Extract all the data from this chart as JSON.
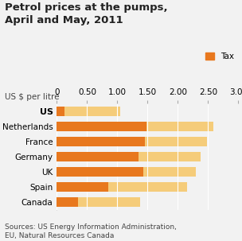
{
  "title": "Petrol prices at the pumps,\nApril and May, 2011",
  "ylabel_label": "US $ per litre",
  "source_text": "Sources: US Energy Information Administration,\nEU, Natural Resources Canada",
  "countries": [
    "US",
    "Netherlands",
    "France",
    "Germany",
    "UK",
    "Spain",
    "Canada"
  ],
  "tax": [
    0.13,
    1.48,
    1.45,
    1.35,
    1.43,
    0.85,
    0.35
  ],
  "total": [
    1.05,
    2.58,
    2.48,
    2.38,
    2.3,
    2.15,
    1.38
  ],
  "tax_color": "#E8781E",
  "base_color": "#F5CC7A",
  "background_color": "#f2f2f2",
  "title_fontsize": 9.5,
  "axis_fontsize": 7.5,
  "source_fontsize": 6.5,
  "xlim": [
    0,
    3.0
  ],
  "xticks": [
    0,
    0.5,
    1.0,
    1.5,
    2.0,
    2.5,
    3.0
  ],
  "xtick_labels": [
    "0",
    "0.50",
    "1.00",
    "1.50",
    "2.00",
    "2.50",
    "3.00"
  ],
  "legend_label": "Tax",
  "bar_height": 0.62
}
